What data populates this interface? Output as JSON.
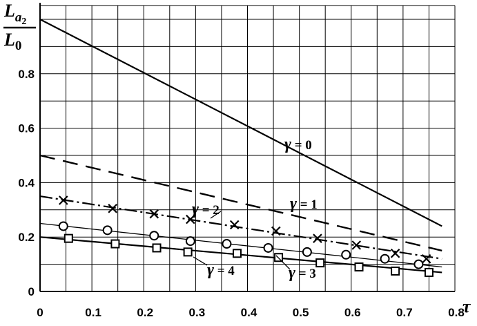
{
  "chart_data": {
    "type": "line",
    "xlim": [
      0,
      0.8
    ],
    "ylim": [
      0,
      1.0
    ],
    "x_ticks": [
      "0",
      "0.1",
      "0.2",
      "0.3",
      "0.4",
      "0.5",
      "0.6",
      "0.7",
      "0.8"
    ],
    "y_ticks": [
      "0",
      "0.2",
      "0.4",
      "0.6",
      "0.8"
    ],
    "xlabel": "τ",
    "ylabel": {
      "numerator": "L",
      "numerator_sub": "a",
      "numerator_subsub": "2",
      "denominator": "L",
      "denominator_sub": "0"
    },
    "grid": true,
    "legend": "none",
    "series": [
      {
        "name": "γ = 0",
        "style": "solid",
        "marker": "none",
        "x": [
          0,
          0.775
        ],
        "y": [
          1.0,
          0.24
        ]
      },
      {
        "name": "γ = 1",
        "style": "dashed",
        "marker": "none",
        "x": [
          0,
          0.775
        ],
        "y": [
          0.5,
          0.15
        ]
      },
      {
        "name": "γ = 2",
        "style": "dash-dot",
        "marker": "x",
        "x": [
          0,
          0.775
        ],
        "y": [
          0.35,
          0.12
        ],
        "markers_x": [
          0.045,
          0.14,
          0.22,
          0.29,
          0.375,
          0.455,
          0.535,
          0.61,
          0.685,
          0.745
        ],
        "markers_y": [
          0.335,
          0.305,
          0.285,
          0.265,
          0.245,
          0.222,
          0.195,
          0.17,
          0.14,
          0.12
        ]
      },
      {
        "name": "γ = 3",
        "style": "solid-thin",
        "marker": "circle",
        "x": [
          0,
          0.775
        ],
        "y": [
          0.25,
          0.09
        ],
        "markers_x": [
          0.045,
          0.13,
          0.22,
          0.29,
          0.36,
          0.44,
          0.515,
          0.59,
          0.665,
          0.73
        ],
        "markers_y": [
          0.24,
          0.225,
          0.205,
          0.185,
          0.175,
          0.16,
          0.145,
          0.135,
          0.12,
          0.1
        ]
      },
      {
        "name": "γ = 4",
        "style": "solid",
        "marker": "square",
        "x": [
          0,
          0.775
        ],
        "y": [
          0.2,
          0.07
        ],
        "markers_x": [
          0.055,
          0.145,
          0.225,
          0.285,
          0.38,
          0.46,
          0.54,
          0.615,
          0.685,
          0.75
        ],
        "markers_y": [
          0.195,
          0.175,
          0.16,
          0.145,
          0.14,
          0.125,
          0.105,
          0.09,
          0.075,
          0.07
        ]
      }
    ],
    "annotations": [
      {
        "text_gamma": "γ",
        "text_rest": " = 0",
        "series": 0
      },
      {
        "text_gamma": "γ",
        "text_rest": " = 1",
        "series": 1
      },
      {
        "text_gamma": "γ",
        "text_rest": " = 2",
        "series": 2
      },
      {
        "text_gamma": "γ",
        "text_rest": " = 3",
        "series": 3
      },
      {
        "text_gamma": "γ",
        "text_rest": " = 4",
        "series": 4
      }
    ]
  }
}
